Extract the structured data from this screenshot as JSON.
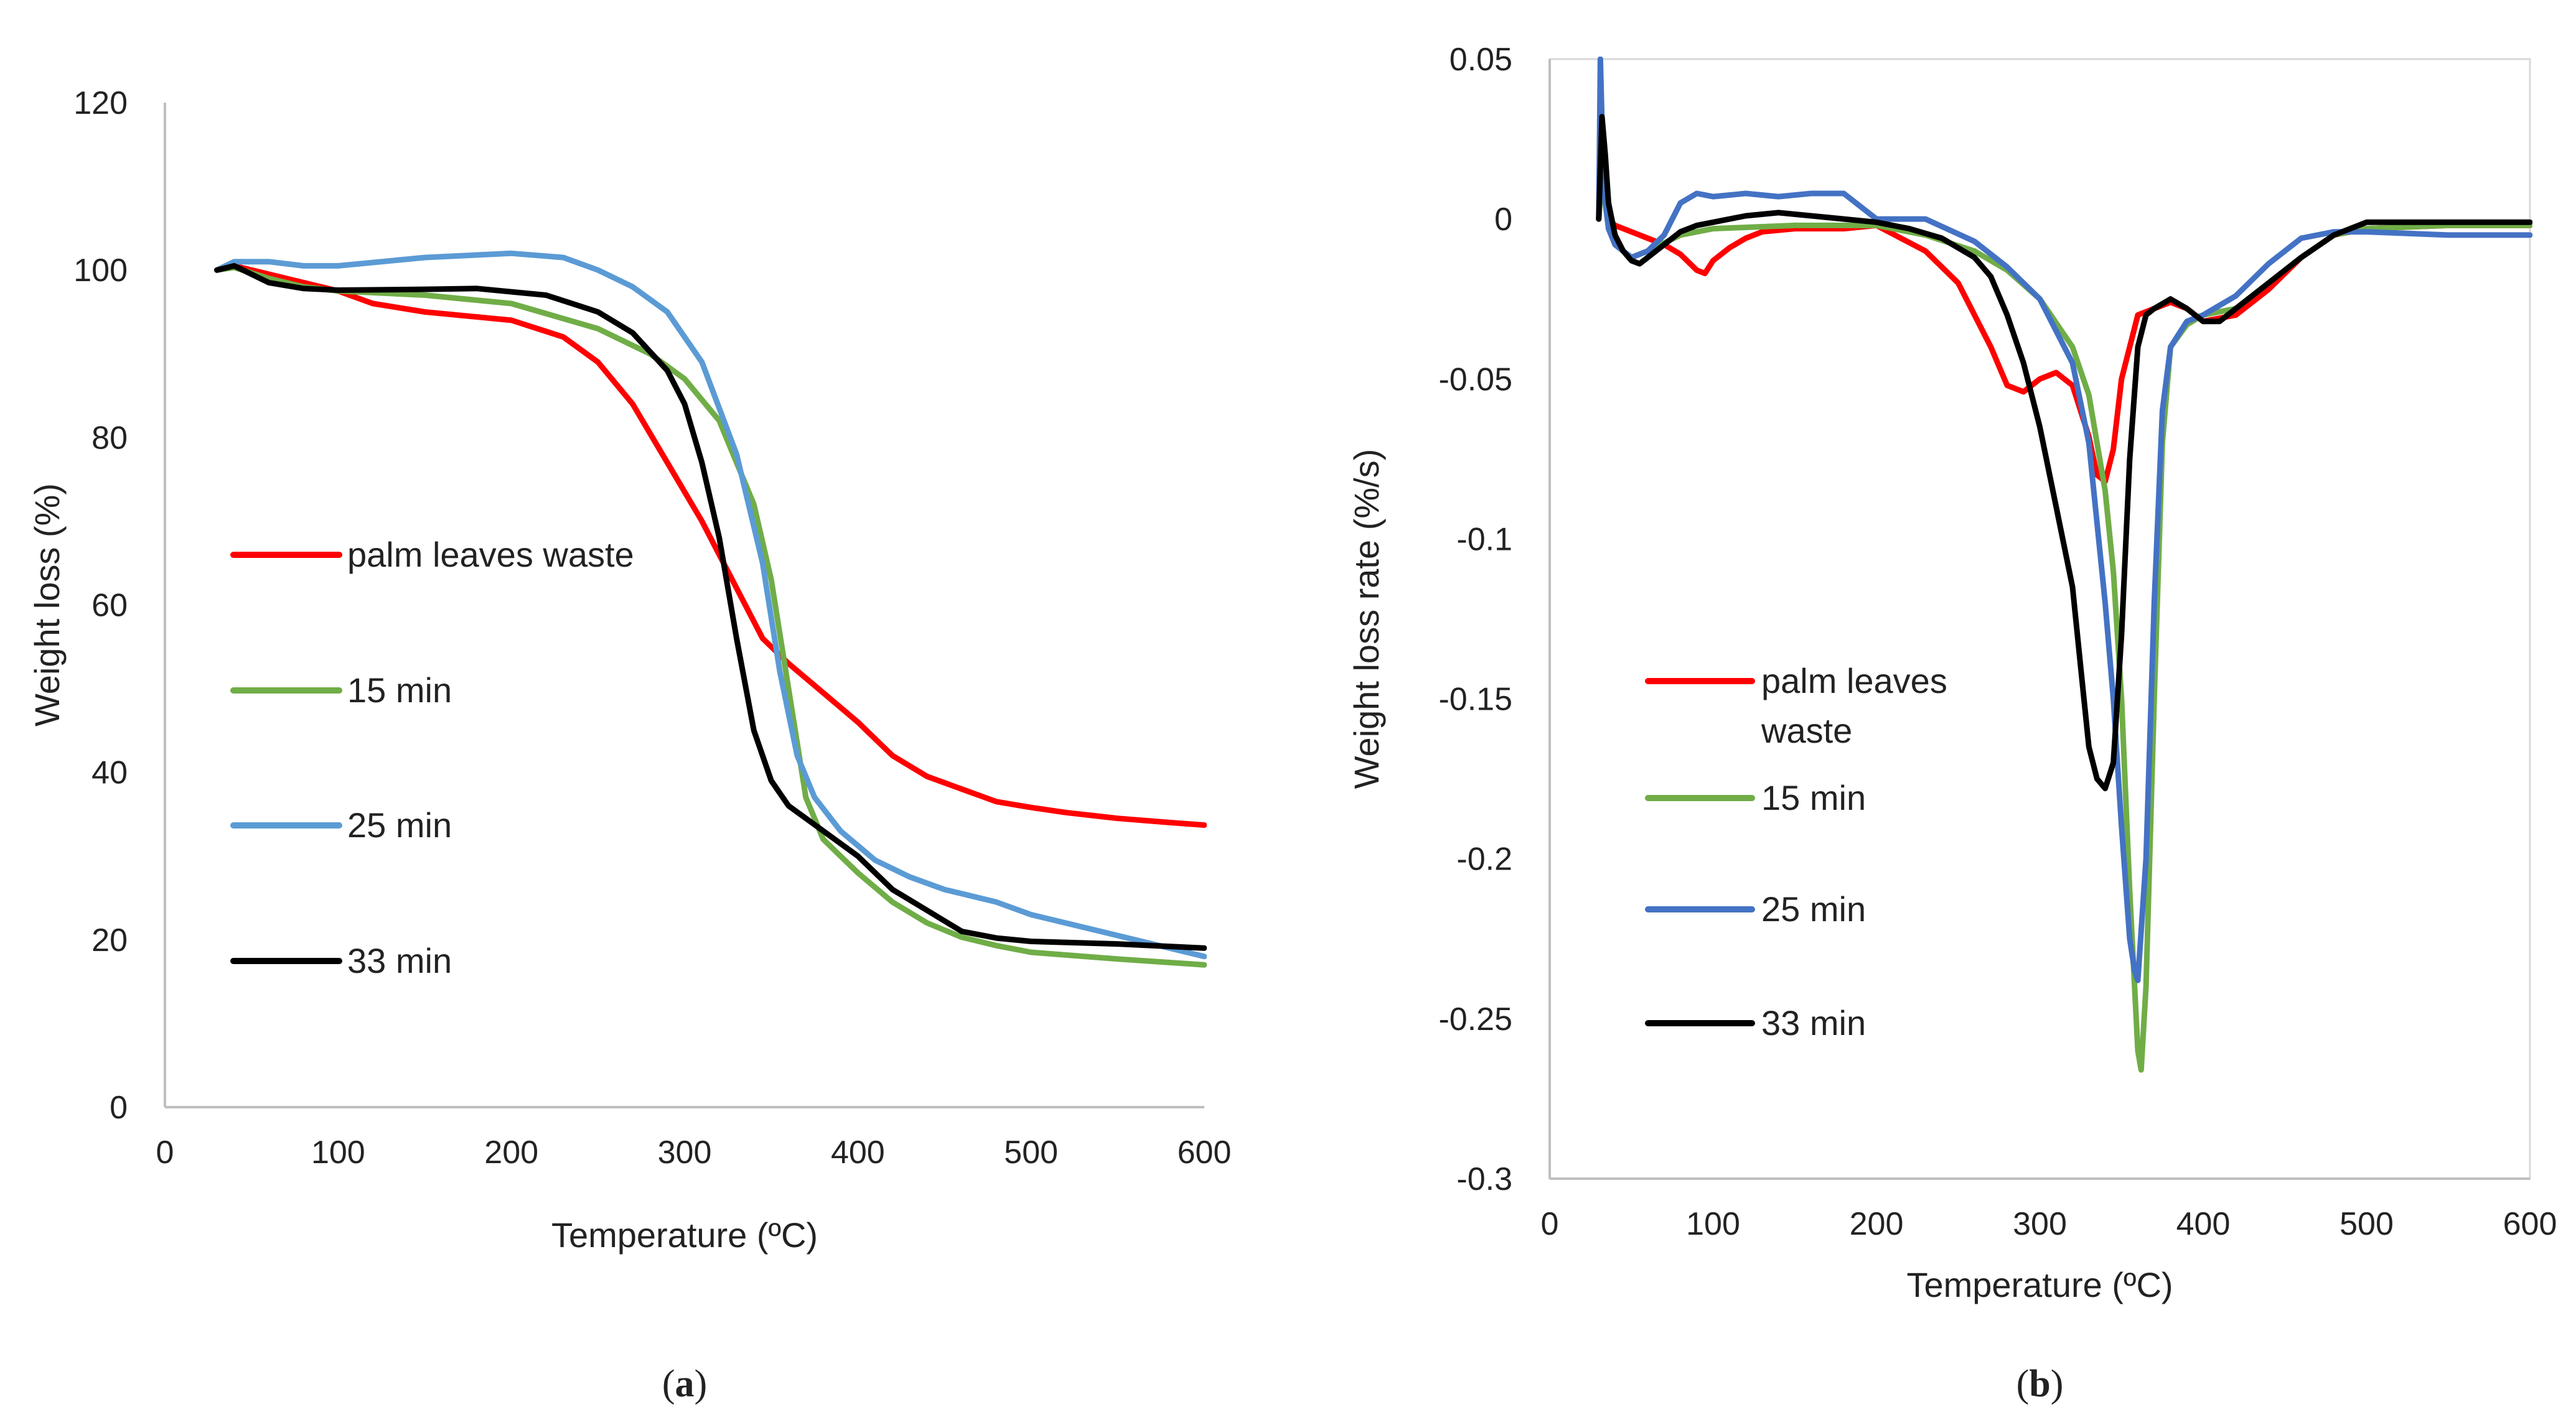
{
  "chart_data": [
    {
      "type": "line",
      "panel_label": "a",
      "title": "",
      "xlabel": "Temperature (ºC)",
      "ylabel": "Weight loss (%)",
      "xlim": [
        0,
        600
      ],
      "ylim": [
        0,
        120
      ],
      "xticks": [
        "0",
        "100",
        "200",
        "300",
        "400",
        "500",
        "600"
      ],
      "yticks": [
        "0",
        "20",
        "40",
        "60",
        "80",
        "100",
        "120"
      ],
      "grid": false,
      "legend_position": "left-middle",
      "series": [
        {
          "name": "palm leaves waste",
          "color": "#ff0000",
          "x": [
            30,
            40,
            60,
            80,
            100,
            120,
            150,
            200,
            230,
            250,
            270,
            290,
            310,
            330,
            345,
            360,
            380,
            400,
            420,
            440,
            460,
            480,
            500,
            520,
            550,
            580,
            600
          ],
          "y": [
            100,
            100.5,
            99.5,
            98.5,
            97.5,
            96,
            95,
            94,
            92,
            89,
            84,
            77,
            70,
            62,
            56,
            53,
            49.5,
            46,
            42,
            39.5,
            38,
            36.5,
            35.8,
            35.2,
            34.5,
            34,
            33.7
          ]
        },
        {
          "name": "15 min",
          "color": "#70ad47",
          "x": [
            30,
            40,
            60,
            80,
            100,
            150,
            200,
            250,
            280,
            300,
            320,
            340,
            350,
            360,
            370,
            380,
            390,
            400,
            420,
            440,
            460,
            480,
            500,
            550,
            600
          ],
          "y": [
            100,
            100.3,
            99,
            98,
            97.5,
            97,
            96,
            93,
            90,
            87,
            82,
            72,
            63,
            50,
            37,
            32,
            30,
            28,
            24.5,
            22,
            20.3,
            19.3,
            18.5,
            17.7,
            17
          ]
        },
        {
          "name": "25 min",
          "color": "#5b9bd5",
          "x": [
            30,
            40,
            60,
            80,
            100,
            150,
            200,
            230,
            250,
            270,
            290,
            310,
            330,
            345,
            355,
            365,
            375,
            390,
            410,
            430,
            450,
            480,
            500,
            550,
            600
          ],
          "y": [
            100,
            101,
            101,
            100.5,
            100.5,
            101.5,
            102,
            101.5,
            100,
            98,
            95,
            89,
            78,
            65,
            52,
            42,
            37,
            33,
            29.5,
            27.5,
            26,
            24.5,
            23,
            20.5,
            18
          ]
        },
        {
          "name": "33 min",
          "color": "#000000",
          "x": [
            30,
            40,
            60,
            80,
            100,
            150,
            180,
            220,
            250,
            270,
            290,
            300,
            310,
            320,
            330,
            340,
            350,
            360,
            380,
            400,
            420,
            440,
            460,
            480,
            500,
            550,
            600
          ],
          "y": [
            100,
            100.5,
            98.5,
            97.8,
            97.6,
            97.7,
            97.8,
            97,
            95,
            92.5,
            88,
            84,
            77,
            68,
            56,
            45,
            39,
            36,
            33,
            30,
            26,
            23.5,
            21,
            20.2,
            19.8,
            19.5,
            19
          ]
        }
      ]
    },
    {
      "type": "line",
      "panel_label": "b",
      "title": "",
      "xlabel": "Temperature (ºC)",
      "ylabel": "Weight loss rate (%/s)",
      "xlim": [
        0,
        600
      ],
      "ylim": [
        -0.3,
        0.05
      ],
      "xticks": [
        "0",
        "100",
        "200",
        "300",
        "400",
        "500",
        "600"
      ],
      "yticks": [
        "0.05",
        "0",
        "-0.05",
        "-0.1",
        "-0.15",
        "-0.2",
        "-0.25",
        "-0.3"
      ],
      "grid": false,
      "legend_position": "left-middle",
      "series": [
        {
          "name": "palm leaves waste",
          "color": "#ff0000",
          "x": [
            30,
            33,
            36,
            40,
            50,
            60,
            70,
            80,
            90,
            95,
            100,
            110,
            120,
            130,
            150,
            180,
            200,
            230,
            250,
            270,
            280,
            290,
            300,
            310,
            320,
            330,
            335,
            340,
            345,
            350,
            360,
            370,
            380,
            390,
            400,
            420,
            440,
            460,
            480,
            500,
            550,
            600
          ],
          "y": [
            0,
            0.025,
            0,
            -0.002,
            -0.004,
            -0.006,
            -0.008,
            -0.011,
            -0.016,
            -0.017,
            -0.013,
            -0.009,
            -0.006,
            -0.004,
            -0.003,
            -0.003,
            -0.002,
            -0.01,
            -0.02,
            -0.04,
            -0.052,
            -0.054,
            -0.05,
            -0.048,
            -0.052,
            -0.068,
            -0.08,
            -0.082,
            -0.072,
            -0.05,
            -0.03,
            -0.028,
            -0.026,
            -0.028,
            -0.032,
            -0.03,
            -0.022,
            -0.012,
            -0.005,
            -0.003,
            -0.002,
            -0.002
          ]
        },
        {
          "name": "15 min",
          "color": "#70ad47",
          "x": [
            30,
            33,
            36,
            40,
            50,
            60,
            80,
            100,
            150,
            200,
            230,
            260,
            280,
            300,
            320,
            330,
            340,
            345,
            350,
            355,
            360,
            362,
            365,
            370,
            375,
            380,
            390,
            400,
            420,
            440,
            460,
            480,
            500,
            550,
            600
          ],
          "y": [
            0,
            0.02,
            -0.003,
            -0.008,
            -0.012,
            -0.01,
            -0.005,
            -0.003,
            -0.002,
            -0.002,
            -0.005,
            -0.01,
            -0.016,
            -0.025,
            -0.04,
            -0.055,
            -0.085,
            -0.11,
            -0.15,
            -0.21,
            -0.26,
            -0.266,
            -0.24,
            -0.15,
            -0.07,
            -0.04,
            -0.033,
            -0.03,
            -0.028,
            -0.02,
            -0.012,
            -0.005,
            -0.003,
            -0.002,
            -0.002
          ]
        },
        {
          "name": "25 min",
          "color": "#4472c4",
          "x": [
            30,
            31,
            32,
            34,
            36,
            40,
            50,
            60,
            70,
            80,
            90,
            100,
            120,
            140,
            160,
            180,
            200,
            230,
            260,
            280,
            300,
            320,
            330,
            340,
            345,
            350,
            355,
            358,
            360,
            365,
            370,
            375,
            380,
            390,
            400,
            420,
            440,
            460,
            480,
            500,
            550,
            600
          ],
          "y": [
            0,
            0.05,
            0.03,
            0.005,
            -0.003,
            -0.008,
            -0.012,
            -0.01,
            -0.005,
            0.005,
            0.008,
            0.007,
            0.008,
            0.007,
            0.008,
            0.008,
            0.0,
            0.0,
            -0.007,
            -0.015,
            -0.025,
            -0.045,
            -0.07,
            -0.12,
            -0.15,
            -0.19,
            -0.225,
            -0.235,
            -0.238,
            -0.2,
            -0.12,
            -0.06,
            -0.04,
            -0.032,
            -0.03,
            -0.024,
            -0.014,
            -0.006,
            -0.004,
            -0.004,
            -0.005,
            -0.005
          ]
        },
        {
          "name": "33 min",
          "color": "#000000",
          "x": [
            30,
            32,
            34,
            36,
            40,
            45,
            50,
            55,
            60,
            70,
            80,
            90,
            100,
            120,
            140,
            160,
            180,
            200,
            220,
            240,
            260,
            270,
            280,
            290,
            300,
            310,
            320,
            325,
            330,
            335,
            340,
            345,
            350,
            355,
            360,
            365,
            370,
            380,
            390,
            400,
            410,
            420,
            440,
            460,
            480,
            500,
            550,
            600
          ],
          "y": [
            0,
            0.032,
            0.02,
            0.005,
            -0.005,
            -0.01,
            -0.013,
            -0.014,
            -0.012,
            -0.008,
            -0.004,
            -0.002,
            -0.001,
            0.001,
            0.002,
            0.001,
            0.0,
            -0.001,
            -0.003,
            -0.006,
            -0.012,
            -0.018,
            -0.03,
            -0.045,
            -0.065,
            -0.09,
            -0.115,
            -0.14,
            -0.165,
            -0.175,
            -0.178,
            -0.17,
            -0.13,
            -0.075,
            -0.04,
            -0.03,
            -0.028,
            -0.025,
            -0.028,
            -0.032,
            -0.032,
            -0.028,
            -0.02,
            -0.012,
            -0.005,
            -0.001,
            -0.001,
            -0.001
          ]
        }
      ]
    }
  ]
}
